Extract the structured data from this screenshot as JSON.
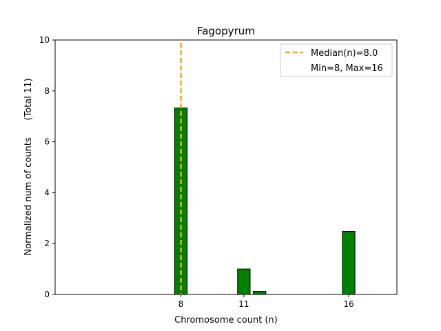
{
  "chart_data": {
    "type": "bar",
    "title": "Fagopyrum",
    "xlabel": "Chromosome count (n)",
    "ylabel": "Normalized num of counts      (Total 11)",
    "xlim": [
      2,
      18.3
    ],
    "ylim": [
      0,
      10
    ],
    "x_ticks": [
      8,
      11,
      16
    ],
    "y_ticks": [
      0,
      2,
      4,
      6,
      8,
      10
    ],
    "bar_width": 0.6,
    "bar_color": "#008000",
    "bar_edge_color": "#000000",
    "bars": [
      {
        "x": 8,
        "value": 7.33
      },
      {
        "x": 8.75,
        "value": 0.0
      },
      {
        "x": 11,
        "value": 1.0
      },
      {
        "x": 11.75,
        "value": 0.12
      },
      {
        "x": 16,
        "value": 2.48
      }
    ],
    "median_line": {
      "x": 8.0,
      "color": "#f2a900"
    },
    "legend": {
      "position": "top-right",
      "entries": [
        "Median(n)=8.0",
        "Min=8, Max=16"
      ]
    }
  }
}
